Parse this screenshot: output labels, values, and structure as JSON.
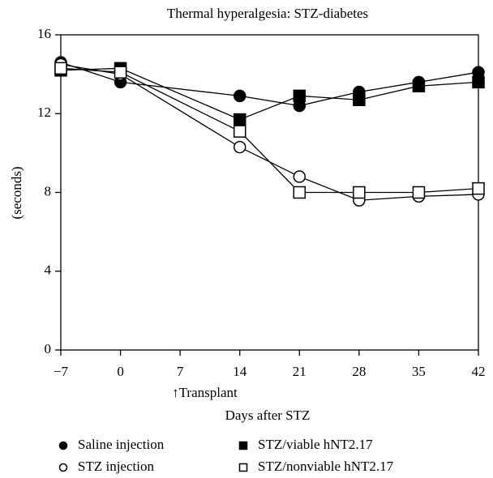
{
  "chart_data": {
    "type": "line",
    "title": "Thermal hyperalgesia: STZ-diabetes",
    "x_label": "Days after STZ",
    "y_label": "(seconds)",
    "annotation": "↑Transplant",
    "x": [
      -7,
      0,
      14,
      21,
      28,
      35,
      42
    ],
    "xlim": [
      -7,
      42
    ],
    "xticks": [
      {
        "value": -7,
        "label": "−7"
      },
      0,
      7,
      14,
      21,
      28,
      35,
      42
    ],
    "ylim": [
      0,
      16
    ],
    "yticks": [
      0,
      4,
      8,
      12,
      16
    ],
    "legend": "bottom",
    "series": [
      {
        "name": "Saline injection",
        "color": "#000000",
        "marker": "circle",
        "filled": true,
        "values": [
          14.6,
          13.6,
          12.9,
          12.4,
          13.1,
          13.6,
          14.1
        ]
      },
      {
        "name": "STZ injection",
        "color": "#000000",
        "marker": "circle",
        "filled": false,
        "values": [
          14.5,
          14.0,
          10.3,
          8.8,
          7.6,
          7.8,
          7.9
        ]
      },
      {
        "name": "STZ/viable hNT2.17",
        "color": "#000000",
        "marker": "square",
        "filled": true,
        "values": [
          14.2,
          14.3,
          11.7,
          12.9,
          12.7,
          13.4,
          13.6
        ]
      },
      {
        "name": "STZ/nonviable hNT2.17",
        "color": "#000000",
        "marker": "square",
        "filled": false,
        "values": [
          14.3,
          14.1,
          11.1,
          8.0,
          8.0,
          8.0,
          8.2
        ]
      }
    ]
  }
}
